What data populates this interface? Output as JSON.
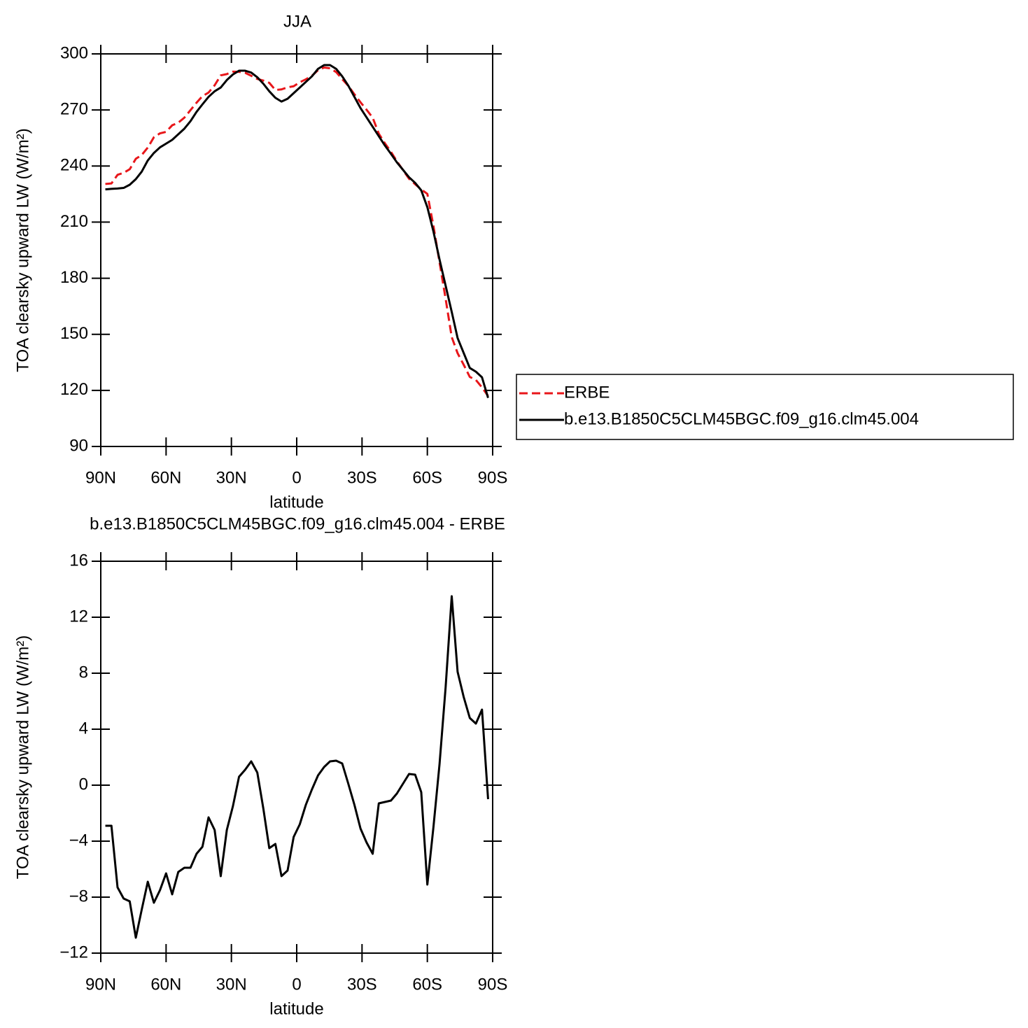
{
  "chart_data": [
    {
      "type": "line",
      "title": "JJA",
      "xlabel": "latitude",
      "ylabel": "TOA clearsky upward LW (W/m²)",
      "x": [
        87.9,
        85.1,
        82.3,
        79.5,
        76.7,
        73.9,
        71.2,
        68.4,
        65.6,
        62.8,
        60.0,
        57.2,
        54.4,
        51.6,
        48.8,
        46.0,
        43.3,
        40.5,
        37.7,
        34.9,
        32.1,
        29.3,
        26.5,
        23.7,
        20.9,
        18.1,
        15.3,
        12.6,
        9.8,
        7.0,
        4.2,
        1.4,
        -1.4,
        -4.2,
        -7.0,
        -9.8,
        -12.6,
        -15.3,
        -18.1,
        -20.9,
        -23.7,
        -26.5,
        -29.3,
        -32.1,
        -34.9,
        -37.7,
        -40.5,
        -43.3,
        -46.0,
        -48.8,
        -51.6,
        -54.4,
        -57.2,
        -60.0,
        -62.8,
        -65.6,
        -68.4,
        -71.2,
        -73.9,
        -76.7,
        -79.5,
        -82.3,
        -85.1,
        -87.9
      ],
      "series": [
        {
          "name": "ERBE",
          "color": "#e8161a",
          "line_style": "dashed",
          "values": [
            230.4,
            230.7,
            235.3,
            236.4,
            238.3,
            243.9,
            245.9,
            249.9,
            255.4,
            257.5,
            258.3,
            261.8,
            263.2,
            265.9,
            269.9,
            273.9,
            277.4,
            279.3,
            283.2,
            288.5,
            289.2,
            290.5,
            290.4,
            289.9,
            288.3,
            286.6,
            285.7,
            284.5,
            280.7,
            281,
            282.1,
            282.7,
            284.8,
            286.4,
            288.3,
            291.3,
            292.7,
            292.3,
            290.3,
            286.5,
            282.9,
            278.4,
            274.1,
            270.1,
            265.9,
            257.3,
            252.2,
            247.6,
            242.6,
            237.9,
            233.2,
            230.3,
            227.5,
            225.1,
            208,
            188.5,
            169,
            148.5,
            139.9,
            133.7,
            127.2,
            125.6,
            121.6,
            117
          ]
        },
        {
          "name": "b.e13.B1850C5CLM45BGC.f09_g16.clm45.004",
          "color": "#000000",
          "line_style": "solid",
          "values": [
            227.5,
            227.8,
            228,
            228.3,
            230,
            233,
            237,
            243,
            247,
            250,
            252,
            254,
            257,
            260,
            264,
            269,
            273,
            277,
            280,
            282,
            286,
            289,
            291,
            291,
            290,
            287.5,
            284,
            280,
            276.5,
            274.5,
            276,
            279,
            282,
            285,
            288,
            292,
            294,
            294,
            292,
            288,
            283,
            277,
            271,
            266,
            261,
            256,
            251,
            246.5,
            242,
            238,
            234,
            231,
            227,
            218,
            205,
            190,
            176,
            162,
            148,
            140,
            132,
            130,
            127,
            116
          ]
        }
      ],
      "xlim": [
        90,
        -90
      ],
      "xticks": [
        {
          "value": 90,
          "label": "90N"
        },
        {
          "value": 60,
          "label": "60N"
        },
        {
          "value": 30,
          "label": "30N"
        },
        0,
        {
          "value": -30,
          "label": "30S"
        },
        {
          "value": -60,
          "label": "60S"
        },
        {
          "value": -90,
          "label": "90S"
        }
      ],
      "ylim": [
        90,
        300
      ],
      "yticks": [
        90,
        120,
        150,
        180,
        210,
        240,
        270,
        300
      ],
      "legend": "right"
    },
    {
      "type": "line",
      "title": "b.e13.B1850C5CLM45BGC.f09_g16.clm45.004 - ERBE",
      "xlabel": "latitude",
      "ylabel": "TOA clearsky upward LW (W/m²)",
      "x": [
        87.9,
        85.1,
        82.3,
        79.5,
        76.7,
        73.9,
        71.2,
        68.4,
        65.6,
        62.8,
        60.0,
        57.2,
        54.4,
        51.6,
        48.8,
        46.0,
        43.3,
        40.5,
        37.7,
        34.9,
        32.1,
        29.3,
        26.5,
        23.7,
        20.9,
        18.1,
        15.3,
        12.6,
        9.8,
        7.0,
        4.2,
        1.4,
        -1.4,
        -4.2,
        -7.0,
        -9.8,
        -12.6,
        -15.3,
        -18.1,
        -20.9,
        -23.7,
        -26.5,
        -29.3,
        -32.1,
        -34.9,
        -37.7,
        -40.5,
        -43.3,
        -46.0,
        -48.8,
        -51.6,
        -54.4,
        -57.2,
        -60.0,
        -62.8,
        -65.6,
        -68.4,
        -71.2,
        -73.9,
        -76.7,
        -79.5,
        -82.3,
        -85.1,
        -87.9
      ],
      "series": [
        {
          "color": "#000000",
          "line_style": "solid",
          "values": [
            -2.9,
            -2.9,
            -7.3,
            -8.1,
            -8.3,
            -10.9,
            -8.9,
            -6.9,
            -8.4,
            -7.5,
            -6.3,
            -7.8,
            -6.2,
            -5.9,
            -5.9,
            -4.9,
            -4.4,
            -2.3,
            -3.2,
            -6.5,
            -3.2,
            -1.5,
            0.6,
            1.1,
            1.7,
            0.9,
            -1.7,
            -4.5,
            -4.2,
            -6.5,
            -6.1,
            -3.7,
            -2.8,
            -1.4,
            -0.3,
            0.7,
            1.3,
            1.7,
            1.75,
            1.55,
            0.1,
            -1.4,
            -3.1,
            -4.1,
            -4.9,
            -1.3,
            -1.2,
            -1.1,
            -0.6,
            0.1,
            0.8,
            0.75,
            -0.5,
            -7.1,
            -3.0,
            1.5,
            7.0,
            13.5,
            8.1,
            6.3,
            4.8,
            4.4,
            5.4,
            -1.0
          ]
        }
      ],
      "xlim": [
        90,
        -90
      ],
      "xticks": [
        {
          "value": 90,
          "label": "90N"
        },
        {
          "value": 60,
          "label": "60N"
        },
        {
          "value": 30,
          "label": "30N"
        },
        0,
        {
          "value": -30,
          "label": "30S"
        },
        {
          "value": -60,
          "label": "60S"
        },
        {
          "value": -90,
          "label": "90S"
        }
      ],
      "ylim": [
        -12,
        16
      ],
      "yticks": [
        {
          "value": -12,
          "label": "−12"
        },
        {
          "value": -8,
          "label": "−8"
        },
        {
          "value": -4,
          "label": "−4"
        },
        0,
        4,
        8,
        12,
        16
      ]
    }
  ]
}
